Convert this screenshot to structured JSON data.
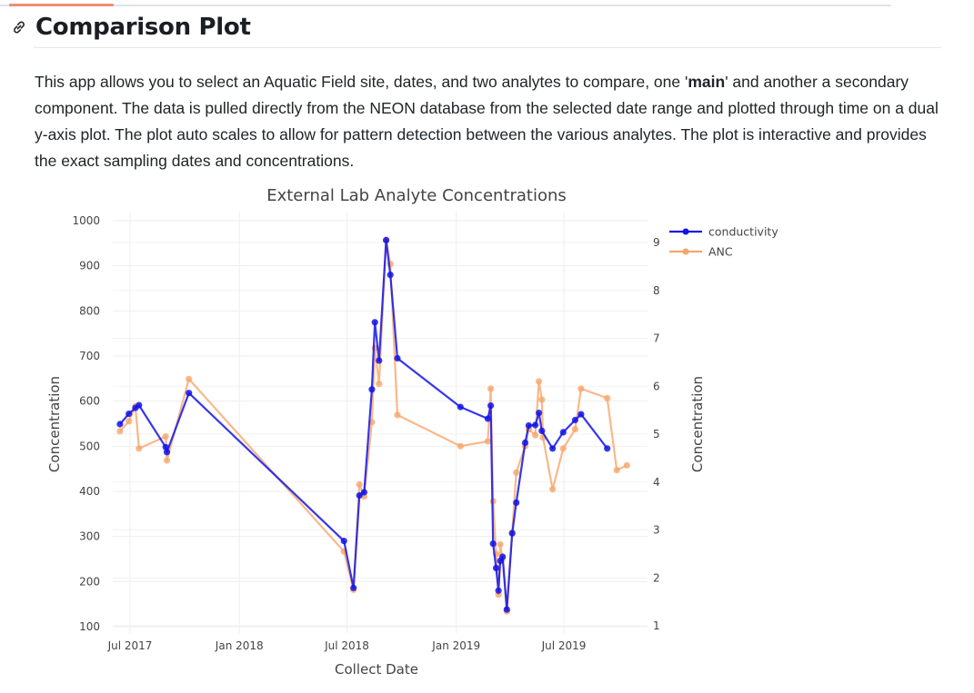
{
  "page": {
    "heading": "Comparison Plot",
    "description_parts": [
      "This app allows you to select an Aquatic Field site, dates, and two analytes to compare, one '",
      "main",
      "' and another a secondary component. The data is pulled directly from the NEON database from the selected date range and plotted through time on a dual y-axis plot. The plot auto scales to allow for pattern detection between the various analytes. The plot is interactive and provides the exact sampling dates and concentrations."
    ]
  },
  "chart_data": {
    "type": "line",
    "title": "External Lab Analyte Concentrations",
    "xlabel": "Collect Date",
    "ylabel": "Concentration",
    "y2label": "Concentration",
    "x_ticks": [
      {
        "label": "Jul 2017",
        "date": "2017-07-01"
      },
      {
        "label": "Jan 2018",
        "date": "2018-01-01"
      },
      {
        "label": "Jul 2018",
        "date": "2018-07-01"
      },
      {
        "label": "Jan 2019",
        "date": "2019-01-01"
      },
      {
        "label": "Jul 2019",
        "date": "2019-07-01"
      }
    ],
    "xlim": [
      "2017-04-20",
      "2019-12-01"
    ],
    "ylim": [
      100,
      1000
    ],
    "y_ticks": [
      100,
      200,
      300,
      400,
      500,
      600,
      700,
      800,
      900,
      1000
    ],
    "y2lim": [
      1,
      9.4
    ],
    "y2_ticks": [
      1,
      2,
      3,
      4,
      5,
      6,
      7,
      8,
      9
    ],
    "grid": true,
    "legend_position": "top-right",
    "series": [
      {
        "name": "conductivity",
        "axis": "y",
        "color": "#1414e6",
        "points": [
          [
            "2017-06-14",
            549
          ],
          [
            "2017-06-29",
            572
          ],
          [
            "2017-07-10",
            585
          ],
          [
            "2017-07-16",
            591
          ],
          [
            "2017-08-30",
            498
          ],
          [
            "2017-09-01",
            487
          ],
          [
            "2017-10-08",
            618
          ],
          [
            "2018-06-26",
            290
          ],
          [
            "2018-07-12",
            186
          ],
          [
            "2018-07-22",
            391
          ],
          [
            "2018-07-30",
            398
          ],
          [
            "2018-08-12",
            626
          ],
          [
            "2018-08-17",
            775
          ],
          [
            "2018-08-24",
            690
          ],
          [
            "2018-09-05",
            957
          ],
          [
            "2018-09-12",
            880
          ],
          [
            "2018-09-24",
            695
          ],
          [
            "2019-01-08",
            587
          ],
          [
            "2019-02-23",
            561
          ],
          [
            "2019-02-28",
            590
          ],
          [
            "2019-03-04",
            284
          ],
          [
            "2019-03-09",
            230
          ],
          [
            "2019-03-13",
            180
          ],
          [
            "2019-03-16",
            246
          ],
          [
            "2019-03-20",
            255
          ],
          [
            "2019-03-27",
            138
          ],
          [
            "2019-04-05",
            307
          ],
          [
            "2019-04-12",
            375
          ],
          [
            "2019-04-27",
            508
          ],
          [
            "2019-05-03",
            546
          ],
          [
            "2019-05-14",
            547
          ],
          [
            "2019-05-20",
            574
          ],
          [
            "2019-05-25",
            534
          ],
          [
            "2019-06-12",
            495
          ],
          [
            "2019-06-30",
            531
          ],
          [
            "2019-07-20",
            558
          ],
          [
            "2019-07-30",
            571
          ],
          [
            "2019-09-12",
            495
          ]
        ]
      },
      {
        "name": "ANC",
        "axis": "y2",
        "color": "#f7a66b",
        "points": [
          [
            "2017-06-14",
            5.06
          ],
          [
            "2017-06-29",
            5.27
          ],
          [
            "2017-07-10",
            5.58
          ],
          [
            "2017-07-16",
            4.7
          ],
          [
            "2017-08-30",
            4.95
          ],
          [
            "2017-09-01",
            4.45
          ],
          [
            "2017-10-08",
            6.15
          ],
          [
            "2018-06-26",
            2.55
          ],
          [
            "2018-07-12",
            1.75
          ],
          [
            "2018-07-22",
            3.95
          ],
          [
            "2018-07-30",
            3.7
          ],
          [
            "2018-08-12",
            5.25
          ],
          [
            "2018-08-17",
            6.8
          ],
          [
            "2018-08-24",
            6.05
          ],
          [
            "2018-09-05",
            9.05
          ],
          [
            "2018-09-12",
            8.55
          ],
          [
            "2018-09-24",
            5.4
          ],
          [
            "2019-01-08",
            4.75
          ],
          [
            "2019-02-23",
            4.85
          ],
          [
            "2019-02-28",
            5.95
          ],
          [
            "2019-03-04",
            3.6
          ],
          [
            "2019-03-09",
            2.5
          ],
          [
            "2019-03-13",
            1.65
          ],
          [
            "2019-03-16",
            2.7
          ],
          [
            "2019-03-20",
            2.4
          ],
          [
            "2019-03-27",
            1.3
          ],
          [
            "2019-04-05",
            2.95
          ],
          [
            "2019-04-12",
            4.2
          ],
          [
            "2019-04-27",
            4.75
          ],
          [
            "2019-05-03",
            5.1
          ],
          [
            "2019-05-14",
            4.98
          ],
          [
            "2019-05-20",
            6.1
          ],
          [
            "2019-05-25",
            5.72
          ],
          [
            "2019-05-27",
            4.93
          ],
          [
            "2019-06-12",
            3.85
          ],
          [
            "2019-06-30",
            4.7
          ],
          [
            "2019-07-20",
            5.1
          ],
          [
            "2019-07-30",
            5.95
          ],
          [
            "2019-09-12",
            5.75
          ],
          [
            "2019-09-28",
            4.25
          ],
          [
            "2019-10-15",
            4.35
          ]
        ]
      }
    ]
  }
}
